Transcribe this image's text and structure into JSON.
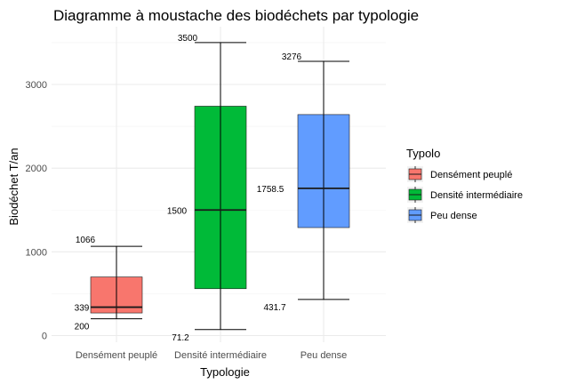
{
  "chart_data": {
    "type": "boxplot",
    "title": "Diagramme à moustache des biodéchets par typologie",
    "xlabel": "Typologie",
    "ylabel": "Biodéchet T/an",
    "ylim": [
      0,
      3650
    ],
    "yticks": [
      0,
      1000,
      2000,
      3000
    ],
    "ytick_labels": [
      "0",
      "1000",
      "2000",
      "3000"
    ],
    "grid": true,
    "legend": {
      "title": "Typolo",
      "position": "right"
    },
    "categories": [
      "Densément peuplé",
      "Densité intermédiaire",
      "Peu dense"
    ],
    "series": [
      {
        "name": "Densément peuplé",
        "color": "#F8766D",
        "min": 200,
        "q1": 270,
        "median": 339,
        "q3": 700,
        "max": 1066,
        "labels": {
          "max": "1066",
          "median": "339",
          "min": "200"
        }
      },
      {
        "name": "Densité intermédiaire",
        "color": "#00BA38",
        "min": 71.2,
        "q1": 560,
        "median": 1500,
        "q3": 2740,
        "max": 3500,
        "labels": {
          "max": "3500",
          "median": "1500",
          "min": "71.2"
        }
      },
      {
        "name": "Peu dense",
        "color": "#619CFF",
        "min": 431.7,
        "q1": 1290,
        "median": 1758.5,
        "q3": 2640,
        "max": 3276,
        "labels": {
          "max": "3276",
          "median": "1758.5",
          "min": "431.7"
        }
      }
    ]
  }
}
